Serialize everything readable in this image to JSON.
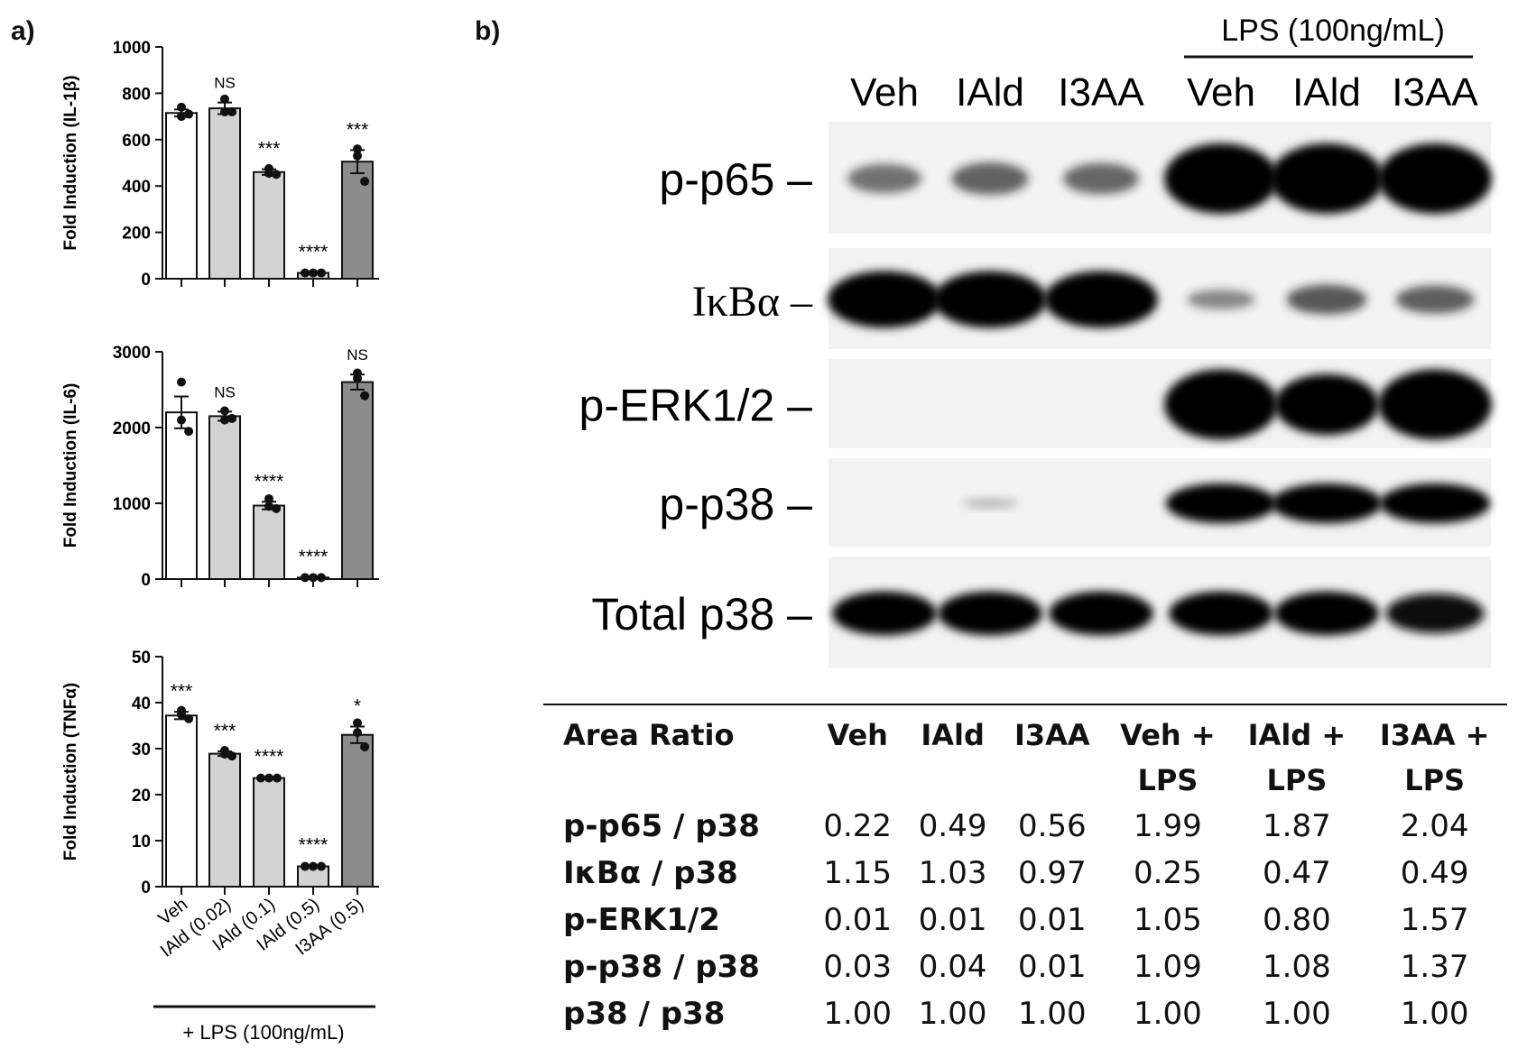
{
  "panel_a_label": "a)",
  "panel_b_label": "b)",
  "chart_data": [
    {
      "type": "bar",
      "ylabel": "Fold Induction (IL-1β)",
      "ylim": [
        0,
        1000
      ],
      "yticks": [
        0,
        200,
        400,
        600,
        800,
        1000
      ],
      "categories": [
        "Veh",
        "IAld (0.02)",
        "IAld (0.1)",
        "IAld (0.5)",
        "I3AA (0.5)"
      ],
      "values": [
        715,
        735,
        460,
        25,
        505
      ],
      "errors": [
        15,
        25,
        12,
        3,
        50
      ],
      "points": [
        [
          740,
          700,
          710
        ],
        [
          775,
          720,
          720
        ],
        [
          475,
          455,
          450
        ],
        [
          25,
          25,
          25
        ],
        [
          560,
          530,
          420
        ]
      ],
      "significance": [
        "",
        "NS",
        "***",
        "****",
        "***"
      ],
      "bar_colors": [
        "#ffffff",
        "#d3d3d3",
        "#d3d3d3",
        "#d3d3d3",
        "#8c8c8c"
      ]
    },
    {
      "type": "bar",
      "ylabel": "Fold Induction (IL-6)",
      "ylim": [
        0,
        3000
      ],
      "yticks": [
        0,
        1000,
        2000,
        3000
      ],
      "categories": [
        "Veh",
        "IAld (0.02)",
        "IAld (0.1)",
        "IAld (0.5)",
        "I3AA (0.5)"
      ],
      "values": [
        2200,
        2150,
        970,
        20,
        2600
      ],
      "errors": [
        210,
        60,
        50,
        5,
        100
      ],
      "points": [
        [
          2600,
          2100,
          1950
        ],
        [
          2220,
          2100,
          2120
        ],
        [
          1060,
          960,
          930
        ],
        [
          20,
          20,
          20
        ],
        [
          2720,
          2650,
          2420
        ]
      ],
      "significance": [
        "",
        "NS",
        "****",
        "****",
        "NS"
      ],
      "bar_colors": [
        "#ffffff",
        "#d3d3d3",
        "#d3d3d3",
        "#d3d3d3",
        "#8c8c8c"
      ]
    },
    {
      "type": "bar",
      "ylabel": "Fold Induction (TNFα)",
      "ylim": [
        0,
        50
      ],
      "yticks": [
        0,
        10,
        20,
        30,
        40,
        50
      ],
      "categories": [
        "Veh",
        "IAld (0.02)",
        "IAld (0.1)",
        "IAld (0.5)",
        "I3AA (0.5)"
      ],
      "values": [
        37.2,
        28.9,
        23.6,
        4.4,
        33
      ],
      "errors": [
        0.8,
        0.5,
        0.2,
        0.2,
        1.8
      ],
      "points": [
        [
          38.3,
          37.4,
          36.5
        ],
        [
          29.6,
          28.8,
          28.4
        ],
        [
          23.6,
          23.6,
          23.6
        ],
        [
          4.4,
          4.4,
          4.4
        ],
        [
          35.6,
          33.5,
          30.4
        ]
      ],
      "significance": [
        "***",
        "***",
        "****",
        "****",
        "*"
      ],
      "bar_colors": [
        "#ffffff",
        "#d3d3d3",
        "#d3d3d3",
        "#d3d3d3",
        "#8c8c8c"
      ]
    }
  ],
  "xlabels": [
    "Veh",
    "IAld (0.02)",
    "IAld (0.1)",
    "IAld (0.5)",
    "I3AA (0.5)"
  ],
  "lps_label_a": "+ LPS (100ng/mL)",
  "blot": {
    "lps_header": "LPS (100ng/mL)",
    "lanes": [
      "Veh",
      "IAld",
      "I3AA",
      "Veh",
      "IAld",
      "I3AA"
    ],
    "rows": [
      {
        "label": "p-p65 –",
        "intensity": [
          0.35,
          0.4,
          0.38,
          1.0,
          1.0,
          1.0
        ]
      },
      {
        "label": "IκBα –",
        "intensity": [
          1.0,
          1.0,
          1.0,
          0.25,
          0.45,
          0.42
        ]
      },
      {
        "label": "p-ERK1/2 –",
        "intensity": [
          0.0,
          0.0,
          0.0,
          1.0,
          0.85,
          1.0
        ]
      },
      {
        "label": "p-p38 –",
        "intensity": [
          0.0,
          0.05,
          0.0,
          0.95,
          0.95,
          0.95
        ]
      },
      {
        "label": "Total p38 –",
        "intensity": [
          0.85,
          0.85,
          0.85,
          0.85,
          0.85,
          0.75
        ]
      }
    ]
  },
  "table": {
    "header_row1": [
      "Area Ratio",
      "Veh",
      "IAld",
      "I3AA",
      "Veh +",
      "IAld +",
      "I3AA +"
    ],
    "header_row2": [
      "",
      "",
      "",
      "",
      "LPS",
      "LPS",
      "LPS"
    ],
    "rows": [
      {
        "label": "p-p65 / p38",
        "values": [
          "0.22",
          "0.49",
          "0.56",
          "1.99",
          "1.87",
          "2.04"
        ]
      },
      {
        "label": "IκBα / p38",
        "values": [
          "1.15",
          "1.03",
          "0.97",
          "0.25",
          "0.47",
          "0.49"
        ]
      },
      {
        "label": "p-ERK1/2",
        "values": [
          "0.01",
          "0.01",
          "0.01",
          "1.05",
          "0.80",
          "1.57"
        ]
      },
      {
        "label": "p-p38 / p38",
        "values": [
          "0.03",
          "0.04",
          "0.01",
          "1.09",
          "1.08",
          "1.37"
        ]
      },
      {
        "label": "p38 / p38",
        "values": [
          "1.00",
          "1.00",
          "1.00",
          "1.00",
          "1.00",
          "1.00"
        ]
      }
    ]
  }
}
